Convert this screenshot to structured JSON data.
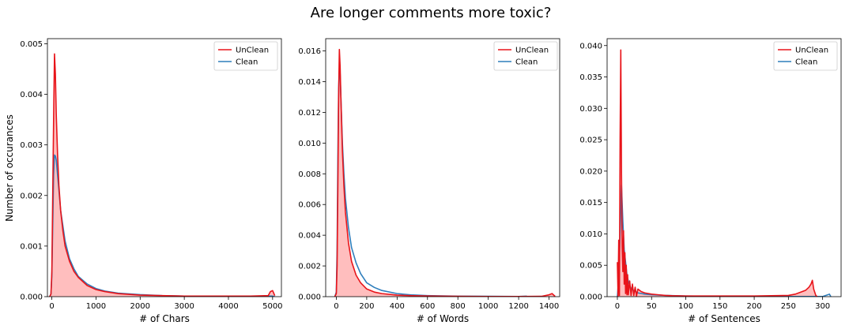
{
  "title": "Are longer comments more toxic?",
  "ylabel": "Number of occurances",
  "colors": {
    "unclean": "#e8141a",
    "unclean_fill": "#ffb3b3",
    "clean": "#2f7ebc"
  },
  "chart_data": [
    {
      "type": "area",
      "xlabel": "# of Chars",
      "xlim": [
        -100,
        5200
      ],
      "ylim": [
        0,
        0.0051
      ],
      "xticks": [
        0,
        1000,
        2000,
        3000,
        4000,
        5000
      ],
      "xtick_labels": [
        "0",
        "1000",
        "2000",
        "3000",
        "4000",
        "5000"
      ],
      "yticks": [
        0,
        0.001,
        0.002,
        0.003,
        0.004,
        0.005
      ],
      "ytick_labels": [
        "0.000",
        "0.001",
        "0.002",
        "0.003",
        "0.004",
        "0.005"
      ],
      "legend": "top-right",
      "series": [
        {
          "name": "UnClean",
          "color": "#e8141a",
          "fill": true,
          "x": [
            -50,
            -20,
            0,
            20,
            40,
            60,
            80,
            100,
            130,
            160,
            200,
            250,
            300,
            400,
            500,
            600,
            800,
            1000,
            1200,
            1500,
            2000,
            2500,
            3000,
            3500,
            4000,
            4500,
            4900,
            4950,
            5000,
            5050
          ],
          "y": [
            0,
            5e-05,
            0.0005,
            0.002,
            0.0035,
            0.0048,
            0.0044,
            0.0036,
            0.0028,
            0.0022,
            0.0017,
            0.0013,
            0.001,
            0.0007,
            0.0005,
            0.00038,
            0.00022,
            0.00014,
            0.0001,
            6e-05,
            3e-05,
            2e-05,
            1e-05,
            1e-05,
            1e-05,
            1e-05,
            2e-05,
            0.0001,
            0.00012,
            2e-05
          ]
        },
        {
          "name": "Clean",
          "color": "#2f7ebc",
          "fill": false,
          "x": [
            -50,
            -20,
            0,
            20,
            40,
            60,
            80,
            100,
            130,
            160,
            200,
            250,
            300,
            400,
            500,
            600,
            800,
            1000,
            1200,
            1500,
            2000,
            2500,
            3000,
            3500,
            4000,
            4500,
            5000,
            5050
          ],
          "y": [
            0,
            5e-05,
            0.0004,
            0.0014,
            0.0024,
            0.0028,
            0.00278,
            0.0027,
            0.0024,
            0.0021,
            0.0017,
            0.0014,
            0.0011,
            0.00075,
            0.00055,
            0.0004,
            0.00025,
            0.00016,
            0.00011,
            7e-05,
            4e-05,
            2e-05,
            1e-05,
            1e-05,
            1e-05,
            1e-05,
            1e-05,
            0
          ]
        }
      ]
    },
    {
      "type": "area",
      "xlabel": "# of Words",
      "xlim": [
        -70,
        1470
      ],
      "ylim": [
        0,
        0.0168
      ],
      "xticks": [
        0,
        200,
        400,
        600,
        800,
        1000,
        1200,
        1400
      ],
      "xtick_labels": [
        "0",
        "200",
        "400",
        "600",
        "800",
        "1000",
        "1200",
        "1400"
      ],
      "yticks": [
        0,
        0.002,
        0.004,
        0.006,
        0.008,
        0.01,
        0.012,
        0.014,
        0.016
      ],
      "ytick_labels": [
        "0.000",
        "0.002",
        "0.004",
        "0.006",
        "0.008",
        "0.010",
        "0.012",
        "0.014",
        "0.016"
      ],
      "legend": "top-right",
      "series": [
        {
          "name": "UnClean",
          "color": "#e8141a",
          "fill": true,
          "x": [
            -10,
            0,
            5,
            10,
            15,
            20,
            25,
            30,
            40,
            50,
            60,
            80,
            100,
            130,
            160,
            200,
            250,
            300,
            400,
            500,
            600,
            800,
            1000,
            1200,
            1350,
            1400,
            1420,
            1440
          ],
          "y": [
            0,
            0.0002,
            0.002,
            0.007,
            0.013,
            0.0161,
            0.015,
            0.013,
            0.0095,
            0.0072,
            0.0055,
            0.0035,
            0.0023,
            0.0014,
            0.0009,
            0.0005,
            0.0003,
            0.0002,
            0.0001,
            6e-05,
            4e-05,
            2e-05,
            1e-05,
            1e-05,
            2e-05,
            0.00012,
            0.0002,
            2e-05
          ]
        },
        {
          "name": "Clean",
          "color": "#2f7ebc",
          "fill": false,
          "x": [
            -10,
            0,
            5,
            10,
            15,
            20,
            25,
            30,
            40,
            50,
            60,
            80,
            100,
            130,
            160,
            200,
            250,
            300,
            400,
            500,
            600,
            800,
            1000,
            1200,
            1250,
            1260
          ],
          "y": [
            0,
            0.0003,
            0.003,
            0.009,
            0.0135,
            0.0149,
            0.0145,
            0.013,
            0.01,
            0.008,
            0.0064,
            0.0045,
            0.0032,
            0.0022,
            0.0015,
            0.0009,
            0.0006,
            0.0004,
            0.0002,
            0.00011,
            7e-05,
            3e-05,
            2e-05,
            1e-05,
            3e-05,
            0
          ]
        }
      ]
    },
    {
      "type": "area",
      "xlabel": "# of Sentences",
      "xlim": [
        -15,
        327
      ],
      "ylim": [
        0,
        0.0411
      ],
      "xticks": [
        0,
        50,
        100,
        150,
        200,
        250,
        300
      ],
      "xtick_labels": [
        "0",
        "50",
        "100",
        "150",
        "200",
        "250",
        "300"
      ],
      "yticks": [
        0,
        0.005,
        0.01,
        0.015,
        0.02,
        0.025,
        0.03,
        0.035,
        0.04
      ],
      "ytick_labels": [
        "0.000",
        "0.005",
        "0.010",
        "0.015",
        "0.020",
        "0.025",
        "0.030",
        "0.035",
        "0.040"
      ],
      "legend": "top-right",
      "series": [
        {
          "name": "UnClean",
          "color": "#e8141a",
          "fill": true,
          "x": [
            0,
            1,
            2,
            3,
            4,
            5,
            6,
            7,
            8,
            9,
            10,
            11,
            12,
            13,
            14,
            15,
            16,
            18,
            20,
            22,
            24,
            26,
            28,
            30,
            35,
            40,
            45,
            50,
            60,
            70,
            80,
            100,
            150,
            200,
            250,
            260,
            265,
            270,
            275,
            280,
            283,
            285,
            287,
            290,
            292
          ],
          "y": [
            0.0055,
            0.0001,
            0.009,
            0.0002,
            0.025,
            0.0393,
            0.02,
            0.008,
            0.004,
            0.0105,
            0.002,
            0.007,
            0.0005,
            0.005,
            0.0003,
            0.0035,
            0.0003,
            0.0025,
            0.0002,
            0.002,
            0.0002,
            0.0015,
            0.0001,
            0.0012,
            0.0008,
            0.0006,
            0.0005,
            0.0004,
            0.0003,
            0.0002,
            0.00015,
            0.0001,
            0.0001,
            0.0001,
            0.0002,
            0.0004,
            0.0006,
            0.0008,
            0.001,
            0.0015,
            0.002,
            0.0026,
            0.0012,
            0.0002,
            0
          ]
        },
        {
          "name": "Clean",
          "color": "#2f7ebc",
          "fill": false,
          "x": [
            0,
            2,
            4,
            6,
            8,
            10,
            12,
            14,
            16,
            18,
            20,
            25,
            30,
            40,
            50,
            70,
            100,
            150,
            200,
            250,
            300,
            310,
            312
          ],
          "y": [
            0,
            0.003,
            0.01,
            0.0178,
            0.012,
            0.0075,
            0.0055,
            0.0035,
            0.0025,
            0.0018,
            0.0013,
            0.0009,
            0.0006,
            0.0004,
            0.0003,
            0.0002,
            0.0001,
            5e-05,
            3e-05,
            2e-05,
            2e-05,
            0.0004,
            0
          ]
        }
      ]
    }
  ]
}
